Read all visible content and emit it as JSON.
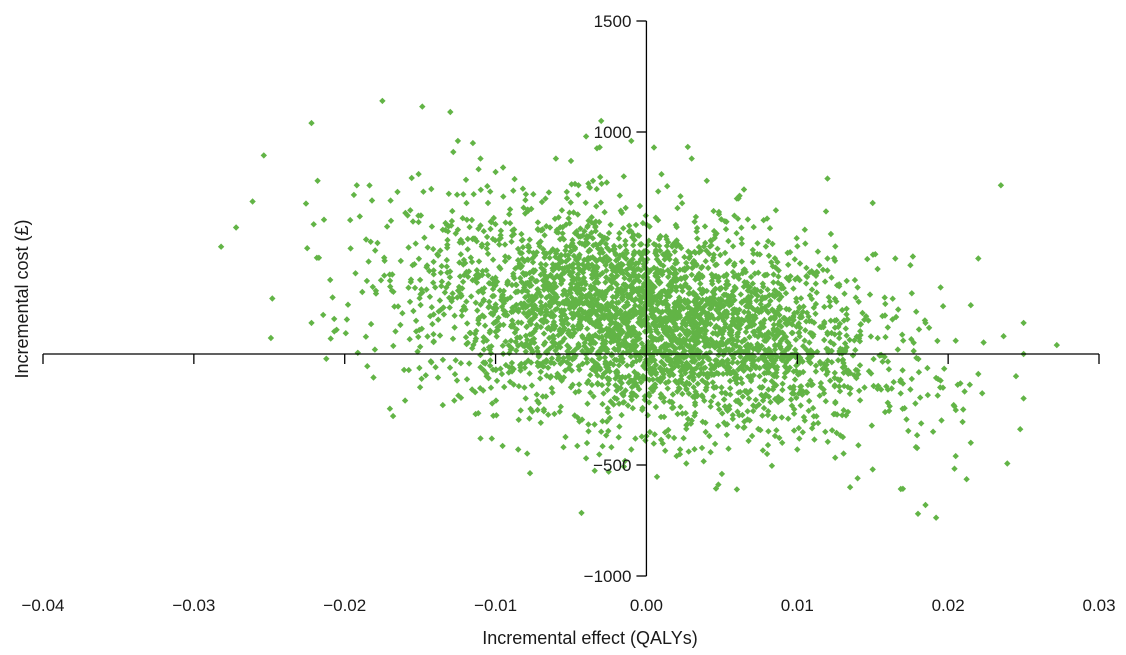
{
  "chart_data": {
    "type": "scatter",
    "title": "",
    "xlabel": "Incremental effect (QALYs)",
    "ylabel": "Incremental cost (£)",
    "xlim": [
      -0.04,
      0.03
    ],
    "ylim": [
      -1000,
      1500
    ],
    "x_ticks": [
      "−0.04",
      "−0.03",
      "−0.02",
      "−0.01",
      "0.00",
      "0.01",
      "0.02",
      "0.03"
    ],
    "x_tick_values": [
      -0.04,
      -0.03,
      -0.02,
      -0.01,
      0.0,
      0.01,
      0.02,
      0.03
    ],
    "y_ticks": [
      "−1000",
      "−500",
      "1000",
      "1500"
    ],
    "y_tick_values": [
      -1000,
      -500,
      1000,
      1500
    ],
    "axes_cross_at": [
      0,
      0
    ],
    "grid": false,
    "legend": "none",
    "marker": "diamond",
    "marker_color": "#62b446",
    "series": [
      {
        "points": [
          [
            -0.0272,
            570
          ],
          [
            -0.0248,
            250
          ],
          [
            -0.0222,
            1040
          ],
          [
            -0.0218,
            780
          ],
          [
            -0.0222,
            140
          ],
          [
            -0.0208,
            255
          ],
          [
            -0.0175,
            1140
          ],
          [
            -0.0192,
            760
          ],
          [
            -0.018,
            20
          ],
          [
            -0.019,
            620
          ],
          [
            -0.0185,
            -55
          ],
          [
            -0.017,
            330
          ],
          [
            -0.0165,
            730
          ],
          [
            -0.013,
            1090
          ],
          [
            -0.0125,
            960
          ],
          [
            -0.0128,
            910
          ],
          [
            -0.0115,
            950
          ],
          [
            -0.011,
            880
          ],
          [
            -0.01,
            820
          ],
          [
            -0.0095,
            840
          ],
          [
            -0.006,
            880
          ],
          [
            -0.005,
            870
          ],
          [
            -0.003,
            1050
          ],
          [
            -0.004,
            980
          ],
          [
            -0.001,
            960
          ],
          [
            0.0005,
            930
          ],
          [
            0.003,
            880
          ],
          [
            0.012,
            790
          ],
          [
            0.015,
            680
          ],
          [
            0.0165,
            430
          ],
          [
            0.0175,
            400
          ],
          [
            0.0195,
            300
          ],
          [
            0.0215,
            220
          ],
          [
            0.0235,
            760
          ],
          [
            0.022,
            430
          ],
          [
            0.025,
            140
          ],
          [
            0.0272,
            40
          ],
          [
            0.025,
            0
          ],
          [
            0.0245,
            -100
          ],
          [
            0.025,
            -200
          ],
          [
            0.022,
            -90
          ],
          [
            0.021,
            -250
          ],
          [
            0.0205,
            -460
          ],
          [
            0.0215,
            -400
          ],
          [
            0.019,
            -350
          ],
          [
            0.0185,
            -680
          ],
          [
            0.018,
            -720
          ],
          [
            0.015,
            -520
          ],
          [
            0.014,
            -560
          ],
          [
            0.0135,
            -600
          ],
          [
            0.01,
            -430
          ],
          [
            0.009,
            -400
          ],
          [
            0.008,
            -450
          ],
          [
            0.006,
            -610
          ],
          [
            0.005,
            -540
          ],
          [
            0.002,
            -460
          ],
          [
            -0.001,
            -430
          ],
          [
            -0.0025,
            -530
          ],
          [
            -0.004,
            -470
          ],
          [
            -0.0055,
            -420
          ],
          [
            -0.0085,
            -430
          ],
          [
            -0.011,
            -380
          ],
          [
            -0.015,
            -150
          ],
          [
            -0.016,
            -210
          ],
          [
            -0.0135,
            -230
          ],
          [
            -0.008,
            -200
          ],
          [
            -0.007,
            -310
          ],
          [
            -0.003,
            -350
          ],
          [
            0.0,
            -370
          ],
          [
            0.003,
            -300
          ],
          [
            0.0065,
            -330
          ],
          [
            0.0105,
            -300
          ],
          [
            0.0125,
            -270
          ],
          [
            0.016,
            -220
          ],
          [
            0.0175,
            -160
          ],
          [
            0.0195,
            -120
          ],
          [
            0.0205,
            60
          ],
          [
            0.0185,
            140
          ],
          [
            0.016,
            120
          ],
          [
            0.014,
            300
          ],
          [
            0.0125,
            420
          ],
          [
            0.0105,
            560
          ],
          [
            0.008,
            610
          ],
          [
            0.006,
            700
          ],
          [
            0.004,
            780
          ],
          [
            0.001,
            810
          ],
          [
            -0.0015,
            800
          ],
          [
            -0.0045,
            760
          ],
          [
            -0.0075,
            720
          ],
          [
            -0.0105,
            680
          ],
          [
            -0.0125,
            560
          ],
          [
            -0.0145,
            480
          ],
          [
            -0.0155,
            400
          ],
          [
            -0.014,
            300
          ],
          [
            -0.012,
            200
          ],
          [
            -0.01,
            100
          ],
          [
            -0.009,
            20
          ],
          [
            -0.011,
            -60
          ],
          [
            -0.007,
            -80
          ],
          [
            -0.005,
            -150
          ]
        ]
      }
    ],
    "cloud": {
      "count": 3600,
      "center_x": 0.0,
      "center_y": 150,
      "sd_x": 0.0075,
      "sd_y": 240,
      "correlation": -0.33
    }
  }
}
